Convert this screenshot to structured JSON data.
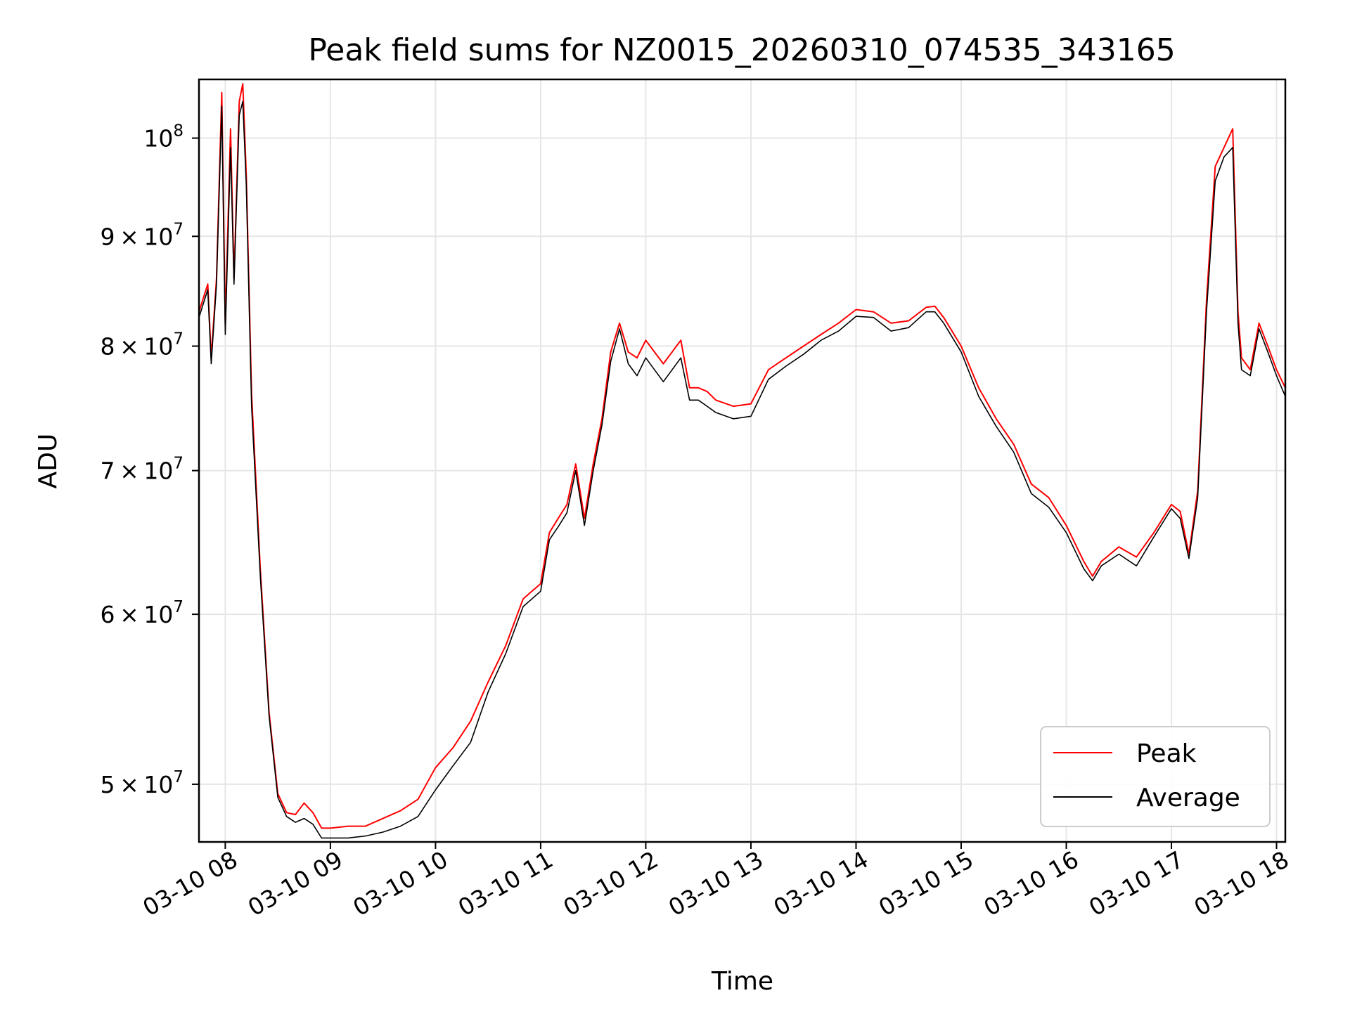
{
  "chart_data": {
    "type": "line",
    "title": "Peak field sums for NZ0015_20260310_074535_343165",
    "xlabel": "Time",
    "ylabel": "ADU",
    "x_axis": {
      "kind": "time",
      "range": [
        "2026-03-10 07:45",
        "2026-03-10 18:05"
      ],
      "ticks": [
        {
          "value": "2026-03-10 08:00",
          "label": "03-10 08"
        },
        {
          "value": "2026-03-10 09:00",
          "label": "03-10 09"
        },
        {
          "value": "2026-03-10 10:00",
          "label": "03-10 10"
        },
        {
          "value": "2026-03-10 11:00",
          "label": "03-10 11"
        },
        {
          "value": "2026-03-10 12:00",
          "label": "03-10 12"
        },
        {
          "value": "2026-03-10 13:00",
          "label": "03-10 13"
        },
        {
          "value": "2026-03-10 14:00",
          "label": "03-10 14"
        },
        {
          "value": "2026-03-10 15:00",
          "label": "03-10 15"
        },
        {
          "value": "2026-03-10 16:00",
          "label": "03-10 16"
        },
        {
          "value": "2026-03-10 17:00",
          "label": "03-10 17"
        },
        {
          "value": "2026-03-10 18:00",
          "label": "03-10 18"
        }
      ]
    },
    "y_axis": {
      "scale": "log",
      "range": [
        47000000,
        106500000
      ],
      "ticks": [
        {
          "value": 50000000,
          "mant": "5",
          "exp": "7"
        },
        {
          "value": 60000000,
          "mant": "6",
          "exp": "7"
        },
        {
          "value": 70000000,
          "mant": "7",
          "exp": "7"
        },
        {
          "value": 80000000,
          "mant": "8",
          "exp": "7"
        },
        {
          "value": 90000000,
          "mant": "9",
          "exp": "7"
        },
        {
          "value": 100000000,
          "mant": "",
          "exp": "8"
        }
      ]
    },
    "grid": true,
    "legend": {
      "position": "lower-right",
      "entries": [
        {
          "name": "Peak",
          "color": "#ff0000"
        },
        {
          "name": "Average",
          "color": "#000000"
        }
      ]
    },
    "x_times": [
      "2026-03-10 07:45",
      "2026-03-10 07:50",
      "2026-03-10 07:52",
      "2026-03-10 07:55",
      "2026-03-10 07:58",
      "2026-03-10 08:00",
      "2026-03-10 08:03",
      "2026-03-10 08:05",
      "2026-03-10 08:08",
      "2026-03-10 08:10",
      "2026-03-10 08:12",
      "2026-03-10 08:15",
      "2026-03-10 08:20",
      "2026-03-10 08:25",
      "2026-03-10 08:30",
      "2026-03-10 08:35",
      "2026-03-10 08:40",
      "2026-03-10 08:45",
      "2026-03-10 08:50",
      "2026-03-10 08:55",
      "2026-03-10 09:00",
      "2026-03-10 09:10",
      "2026-03-10 09:20",
      "2026-03-10 09:30",
      "2026-03-10 09:40",
      "2026-03-10 09:50",
      "2026-03-10 10:00",
      "2026-03-10 10:10",
      "2026-03-10 10:20",
      "2026-03-10 10:30",
      "2026-03-10 10:40",
      "2026-03-10 10:50",
      "2026-03-10 10:55",
      "2026-03-10 11:00",
      "2026-03-10 11:05",
      "2026-03-10 11:10",
      "2026-03-10 11:15",
      "2026-03-10 11:20",
      "2026-03-10 11:25",
      "2026-03-10 11:30",
      "2026-03-10 11:35",
      "2026-03-10 11:40",
      "2026-03-10 11:45",
      "2026-03-10 11:50",
      "2026-03-10 11:55",
      "2026-03-10 12:00",
      "2026-03-10 12:10",
      "2026-03-10 12:20",
      "2026-03-10 12:25",
      "2026-03-10 12:30",
      "2026-03-10 12:35",
      "2026-03-10 12:40",
      "2026-03-10 12:50",
      "2026-03-10 13:00",
      "2026-03-10 13:10",
      "2026-03-10 13:20",
      "2026-03-10 13:30",
      "2026-03-10 13:40",
      "2026-03-10 13:50",
      "2026-03-10 14:00",
      "2026-03-10 14:10",
      "2026-03-10 14:20",
      "2026-03-10 14:30",
      "2026-03-10 14:40",
      "2026-03-10 14:45",
      "2026-03-10 14:50",
      "2026-03-10 15:00",
      "2026-03-10 15:10",
      "2026-03-10 15:20",
      "2026-03-10 15:30",
      "2026-03-10 15:40",
      "2026-03-10 15:50",
      "2026-03-10 16:00",
      "2026-03-10 16:10",
      "2026-03-10 16:15",
      "2026-03-10 16:20",
      "2026-03-10 16:30",
      "2026-03-10 16:40",
      "2026-03-10 16:50",
      "2026-03-10 17:00",
      "2026-03-10 17:05",
      "2026-03-10 17:10",
      "2026-03-10 17:15",
      "2026-03-10 17:20",
      "2026-03-10 17:25",
      "2026-03-10 17:30",
      "2026-03-10 17:35",
      "2026-03-10 17:38",
      "2026-03-10 17:40",
      "2026-03-10 17:45",
      "2026-03-10 17:50",
      "2026-03-10 17:55",
      "2026-03-10 18:00",
      "2026-03-10 18:05"
    ],
    "series": [
      {
        "name": "Peak",
        "color": "#ff0000",
        "values": [
          83000000,
          85500000,
          79000000,
          86000000,
          105000000,
          82000000,
          101000000,
          86000000,
          104000000,
          106000000,
          96000000,
          76000000,
          63000000,
          54000000,
          49500000,
          48500000,
          48400000,
          49000000,
          48500000,
          47700000,
          47700000,
          47800000,
          47800000,
          48200000,
          48600000,
          49200000,
          50900000,
          52000000,
          53500000,
          55800000,
          58000000,
          61000000,
          61500000,
          62000000,
          65500000,
          66500000,
          67500000,
          70500000,
          66500000,
          70500000,
          74000000,
          79500000,
          82000000,
          79500000,
          79000000,
          80500000,
          78500000,
          80500000,
          76500000,
          76500000,
          76200000,
          75500000,
          75000000,
          75200000,
          78000000,
          79000000,
          80000000,
          81000000,
          82000000,
          83200000,
          83000000,
          82000000,
          82200000,
          83400000,
          83500000,
          82500000,
          80000000,
          76500000,
          74000000,
          72000000,
          69000000,
          68000000,
          66000000,
          63500000,
          62500000,
          63500000,
          64500000,
          63800000,
          65500000,
          67500000,
          67000000,
          64000000,
          68500000,
          84000000,
          97000000,
          99000000,
          101000000,
          83000000,
          79000000,
          78000000,
          82000000,
          80000000,
          78000000,
          76500000
        ]
      },
      {
        "name": "Average",
        "color": "#000000",
        "values": [
          82500000,
          85000000,
          78500000,
          85500000,
          103500000,
          81000000,
          99000000,
          85500000,
          102500000,
          104000000,
          95000000,
          75000000,
          62500000,
          53800000,
          49300000,
          48300000,
          48000000,
          48200000,
          47900000,
          47200000,
          47200000,
          47200000,
          47300000,
          47500000,
          47800000,
          48300000,
          49700000,
          51000000,
          52300000,
          55200000,
          57500000,
          60500000,
          61000000,
          61500000,
          65000000,
          65900000,
          66900000,
          70000000,
          66000000,
          70000000,
          73500000,
          78700000,
          81500000,
          78500000,
          77500000,
          79000000,
          77000000,
          79000000,
          75500000,
          75500000,
          75000000,
          74500000,
          74000000,
          74200000,
          77200000,
          78300000,
          79300000,
          80500000,
          81300000,
          82600000,
          82500000,
          81300000,
          81600000,
          83000000,
          83000000,
          82000000,
          79500000,
          75800000,
          73400000,
          71400000,
          68300000,
          67300000,
          65500000,
          63000000,
          62200000,
          63200000,
          64000000,
          63200000,
          65200000,
          67200000,
          66500000,
          63700000,
          68000000,
          83000000,
          95500000,
          98000000,
          99000000,
          82000000,
          78000000,
          77500000,
          81500000,
          79500000,
          77500000,
          75800000
        ]
      }
    ]
  }
}
